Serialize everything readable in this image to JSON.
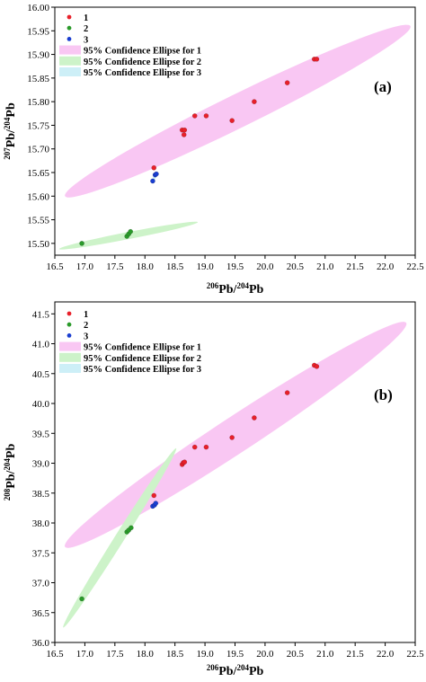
{
  "chart_data": [
    {
      "type": "scatter",
      "panel_label": "(a)",
      "xlabel": {
        "sup1": "206",
        "main1": "Pb/",
        "sup2": "204",
        "main2": "Pb"
      },
      "ylabel": {
        "sup1": "207",
        "main1": "Pb/",
        "sup2": "204",
        "main2": "Pb"
      },
      "xlim": [
        16.5,
        22.5
      ],
      "ylim": [
        15.475,
        16.0
      ],
      "xticks": [
        "16.5",
        "17.0",
        "17.5",
        "18.0",
        "18.5",
        "19.0",
        "19.5",
        "20.0",
        "20.5",
        "21.0",
        "21.5",
        "22.0",
        "22.5"
      ],
      "yticks": [
        "15.50",
        "15.55",
        "15.60",
        "15.65",
        "15.70",
        "15.75",
        "15.80",
        "15.85",
        "15.90",
        "15.95",
        "16.00"
      ],
      "legend": {
        "placement": "top-left",
        "entries": [
          "1",
          "2",
          "3",
          "95% Confidence Ellipse for 1",
          "95% Confidence Ellipse for 2",
          "95% Confidence Ellipse for 3"
        ]
      },
      "series": [
        {
          "name": "1",
          "color": "#e8202a",
          "points": [
            [
              18.15,
              15.66
            ],
            [
              18.62,
              15.74
            ],
            [
              18.66,
              15.74
            ],
            [
              18.65,
              15.73
            ],
            [
              18.83,
              15.77
            ],
            [
              19.02,
              15.77
            ],
            [
              19.45,
              15.76
            ],
            [
              19.82,
              15.8
            ],
            [
              20.37,
              15.84
            ],
            [
              20.82,
              15.89
            ],
            [
              20.86,
              15.89
            ]
          ]
        },
        {
          "name": "2",
          "color": "#2a9a2a",
          "points": [
            [
              16.95,
              15.5
            ],
            [
              17.7,
              15.515
            ],
            [
              17.73,
              15.52
            ],
            [
              17.76,
              15.525
            ]
          ]
        },
        {
          "name": "3",
          "color": "#1a3ed0",
          "points": [
            [
              18.13,
              15.632
            ],
            [
              18.17,
              15.645
            ],
            [
              18.19,
              15.647
            ]
          ]
        }
      ],
      "ellipses": [
        {
          "name": "95% Confidence Ellipse for 1",
          "color": "#f9c7f3",
          "center": [
            19.55,
            15.78
          ],
          "ends": [
            [
              16.67,
              15.6
            ],
            [
              22.42,
              15.96
            ]
          ],
          "minor_radius": 0.035
        },
        {
          "name": "95% Confidence Ellipse for 2",
          "color": "#cdf3c9",
          "center": [
            17.6,
            15.515
          ],
          "ends": [
            [
              16.57,
              15.488
            ],
            [
              18.88,
              15.545
            ]
          ],
          "minor_radius": 0.0075
        },
        {
          "name": "95% Confidence Ellipse for 3",
          "color": "#cdeff7",
          "center": [
            18.16,
            15.64
          ],
          "ends": [
            [
              18.12,
              15.628
            ],
            [
              18.2,
              15.652
            ]
          ],
          "minor_radius": 0.003
        }
      ]
    },
    {
      "type": "scatter",
      "panel_label": "(b)",
      "xlabel": {
        "sup1": "206",
        "main1": "Pb/",
        "sup2": "204",
        "main2": "Pb"
      },
      "ylabel": {
        "sup1": "208",
        "main1": "Pb/",
        "sup2": "204",
        "main2": "Pb"
      },
      "xlim": [
        16.5,
        22.5
      ],
      "ylim": [
        36.0,
        41.7
      ],
      "xticks": [
        "16.5",
        "17.0",
        "17.5",
        "18.0",
        "18.5",
        "19.0",
        "19.5",
        "20.0",
        "20.5",
        "21.0",
        "21.5",
        "22.0",
        "22.5"
      ],
      "yticks": [
        "36.0",
        "36.5",
        "37.0",
        "37.5",
        "38.0",
        "38.5",
        "39.0",
        "39.5",
        "40.0",
        "40.5",
        "41.0",
        "41.5"
      ],
      "legend": {
        "placement": "top-left",
        "entries": [
          "1",
          "2",
          "3",
          "95% Confidence Ellipse for 1",
          "95% Confidence Ellipse for 2",
          "95% Confidence Ellipse for 3"
        ]
      },
      "series": [
        {
          "name": "1",
          "color": "#e8202a",
          "points": [
            [
              18.15,
              38.46
            ],
            [
              18.62,
              38.98
            ],
            [
              18.64,
              39.01
            ],
            [
              18.66,
              39.02
            ],
            [
              18.83,
              39.27
            ],
            [
              19.02,
              39.27
            ],
            [
              19.45,
              39.43
            ],
            [
              19.82,
              39.76
            ],
            [
              20.37,
              40.18
            ],
            [
              20.82,
              40.64
            ],
            [
              20.86,
              40.62
            ]
          ]
        },
        {
          "name": "2",
          "color": "#2a9a2a",
          "points": [
            [
              16.95,
              36.73
            ],
            [
              17.7,
              37.85
            ],
            [
              17.73,
              37.88
            ],
            [
              17.77,
              37.92
            ]
          ]
        },
        {
          "name": "3",
          "color": "#1a3ed0",
          "points": [
            [
              18.13,
              38.28
            ],
            [
              18.16,
              38.3
            ],
            [
              18.18,
              38.33
            ]
          ]
        }
      ],
      "ellipses": [
        {
          "name": "95% Confidence Ellipse for 1",
          "color": "#f9c7f3",
          "center": [
            19.5,
            39.48
          ],
          "ends": [
            [
              16.67,
              37.6
            ],
            [
              22.35,
              41.35
            ]
          ],
          "minor_radius": 0.3
        },
        {
          "name": "95% Confidence Ellipse for 2",
          "color": "#cdf3c9",
          "center": [
            17.58,
            37.75
          ],
          "ends": [
            [
              16.64,
              36.25
            ],
            [
              18.52,
              39.25
            ]
          ],
          "minor_radius": 0.08
        },
        {
          "name": "95% Confidence Ellipse for 3",
          "color": "#cdeff7",
          "center": [
            18.16,
            38.31
          ],
          "ends": [
            [
              18.12,
              38.26
            ],
            [
              18.2,
              38.36
            ]
          ],
          "minor_radius": 0.015
        }
      ]
    }
  ]
}
